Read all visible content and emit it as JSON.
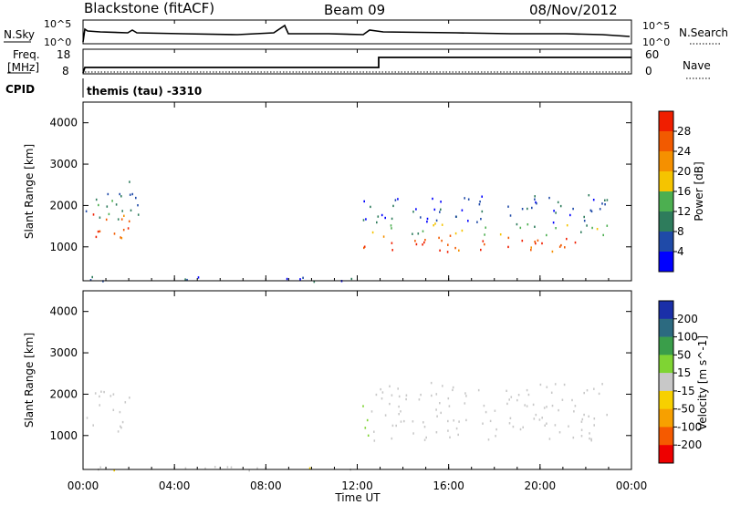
{
  "header": {
    "station": "Blackstone (fitACF)",
    "beam": "Beam 09",
    "date": "08/Nov/2012"
  },
  "noise_panel": {
    "left_label": "N.Sky",
    "right_label": "N.Search",
    "tick_top": "10^5",
    "tick_bottom": "10^0",
    "right_tick_top": "10^5",
    "right_tick_bottom": "10^0"
  },
  "freq_panel": {
    "left_label_1": "Freq.",
    "left_label_2": "[MHz]",
    "right_label": "Nave",
    "left_ticks": [
      "18",
      "8"
    ],
    "right_ticks": [
      "60",
      "0"
    ]
  },
  "cpid_panel": {
    "left_label": "CPID",
    "text": "themis (tau) -3310"
  },
  "colors": {
    "power_scale": [
      "#0000ff",
      "#1f4aa8",
      "#2e7c5c",
      "#4caf50",
      "#f5c400",
      "#f59000",
      "#f25a00",
      "#f01e00"
    ],
    "velocity_scale": [
      "#1a2fa8",
      "#2c6a80",
      "#3a9e4a",
      "#7fd433",
      "#c8c8c8",
      "#f7d000",
      "#f7a000",
      "#f55a00",
      "#ee0000"
    ]
  },
  "chart_data": [
    {
      "type": "heatmap",
      "parameter": "Power",
      "ylabel": "Slant Range [km]",
      "colorbar_label": "Power [dB]",
      "colorbar_ticks": [
        "4",
        "8",
        "12",
        "16",
        "20",
        "24",
        "28"
      ],
      "clim": [
        0,
        32
      ],
      "xlim": [
        0,
        24
      ],
      "ylim": [
        180,
        4500
      ],
      "yticks": [
        "1000",
        "2000",
        "3000",
        "4000"
      ],
      "bands": [
        {
          "x0": 0.1,
          "x1": 2.0,
          "y0": 1100,
          "y1": 1900,
          "value": 26
        },
        {
          "x0": 0.1,
          "x1": 2.5,
          "y0": 1600,
          "y1": 2600,
          "value": 10
        },
        {
          "x0": 12.2,
          "x1": 23.0,
          "y0": 900,
          "y1": 1300,
          "value": 27
        },
        {
          "x0": 12.2,
          "x1": 23.0,
          "y0": 1300,
          "y1": 1600,
          "value": 14
        },
        {
          "x0": 12.2,
          "x1": 23.0,
          "y0": 1600,
          "y1": 2300,
          "value": 6
        },
        {
          "x0": 0.0,
          "x1": 12.0,
          "y0": 180,
          "y1": 300,
          "value": 8
        }
      ]
    },
    {
      "type": "heatmap",
      "parameter": "Velocity",
      "ylabel": "Slant Range [km]",
      "colorbar_label": "Velocity [m s^-1]",
      "colorbar_ticks": [
        "200",
        "100",
        "50",
        "15",
        "-15",
        "-50",
        "-100",
        "-200"
      ],
      "clim": [
        -250,
        250
      ],
      "xlim": [
        0,
        24
      ],
      "ylim": [
        180,
        4500
      ],
      "yticks": [
        "1000",
        "2000",
        "3000",
        "4000"
      ],
      "bands": [
        {
          "x0": 0.1,
          "x1": 2.0,
          "y0": 1100,
          "y1": 2200,
          "value": 0
        },
        {
          "x0": 12.1,
          "x1": 12.6,
          "y0": 800,
          "y1": 1800,
          "value": 40
        },
        {
          "x0": 12.6,
          "x1": 23.0,
          "y0": 900,
          "y1": 1600,
          "value": 0
        },
        {
          "x0": 12.6,
          "x1": 23.0,
          "y0": 1600,
          "y1": 2300,
          "value": 0
        },
        {
          "x0": 0.0,
          "x1": 12.0,
          "y0": 180,
          "y1": 300,
          "value": -20
        }
      ]
    }
  ],
  "xaxis": {
    "label": "Time UT",
    "ticks": [
      "00:00",
      "04:00",
      "08:00",
      "12:00",
      "16:00",
      "20:00",
      "00:00"
    ]
  }
}
